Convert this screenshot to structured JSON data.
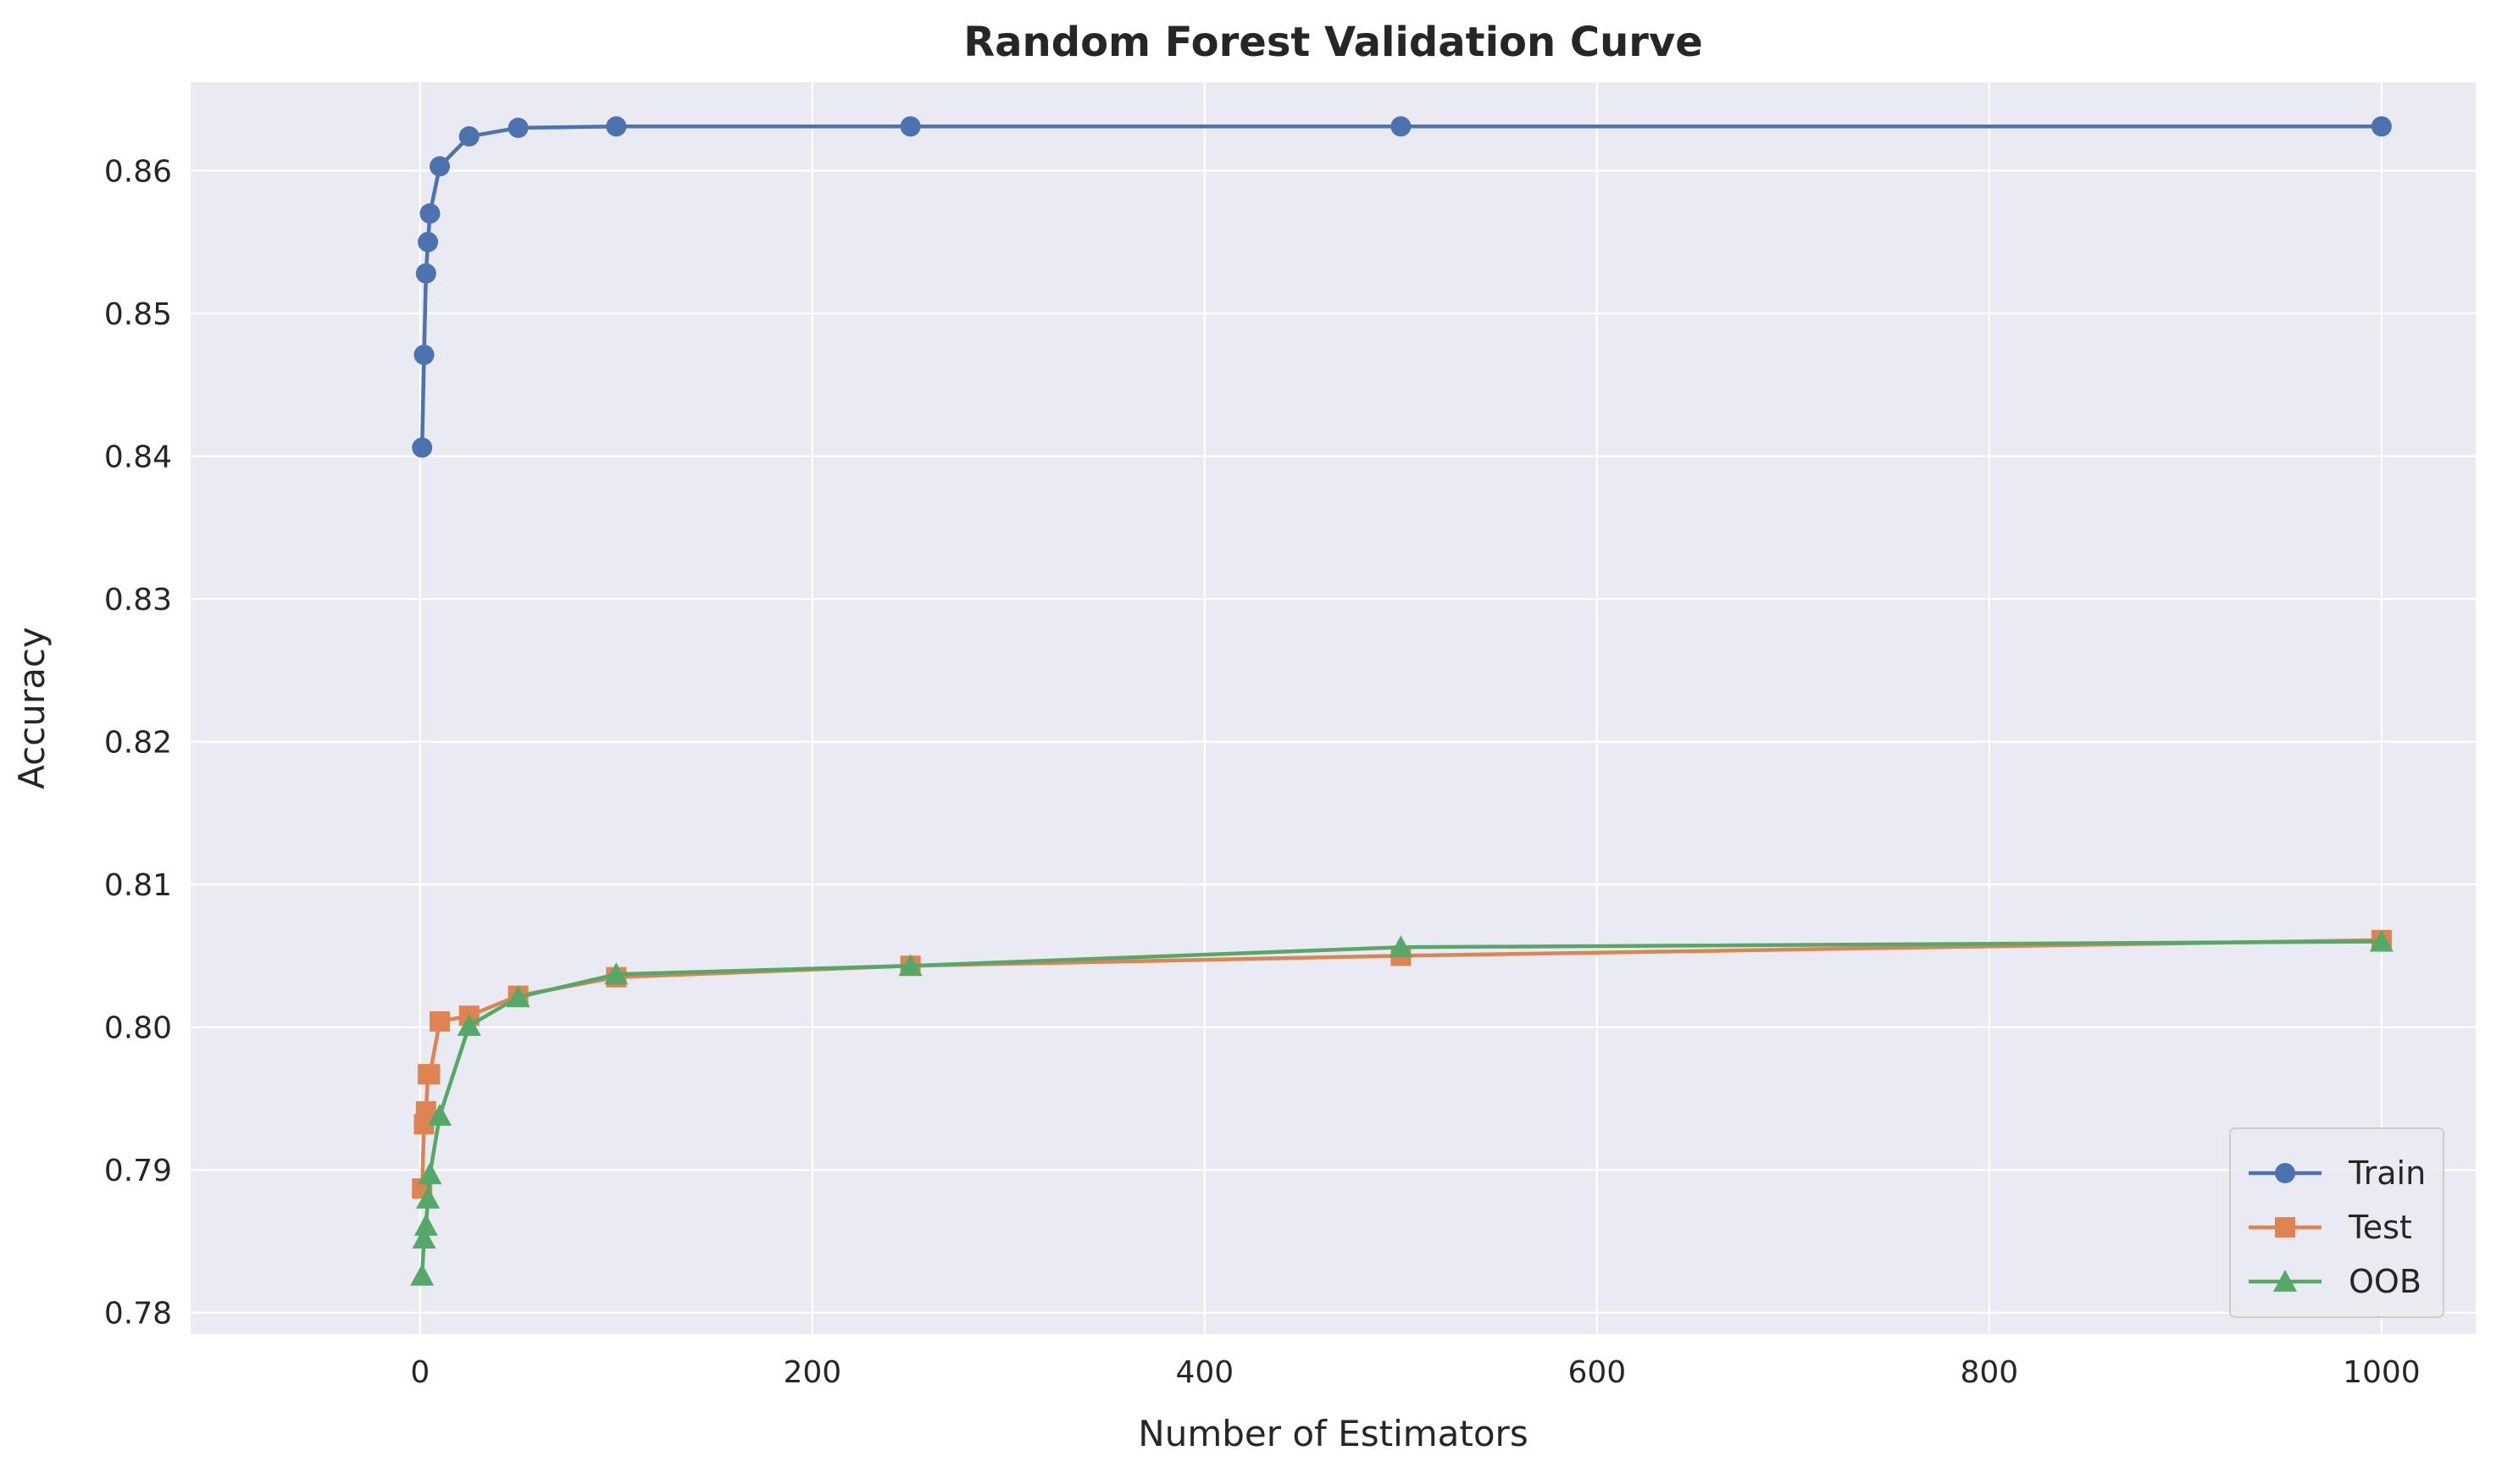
{
  "chart_data": {
    "type": "line",
    "title": "Random Forest Validation Curve",
    "xlabel": "Number of Estimators",
    "ylabel": "Accuracy",
    "xlim": [
      -117,
      1048
    ],
    "ylim": [
      0.7785,
      0.8662
    ],
    "xticks": [
      0,
      200,
      400,
      600,
      800,
      1000
    ],
    "yticks": [
      0.78,
      0.79,
      0.8,
      0.81,
      0.82,
      0.83,
      0.84,
      0.85,
      0.86
    ],
    "ytick_labels": [
      "0.78",
      "0.79",
      "0.80",
      "0.81",
      "0.82",
      "0.83",
      "0.84",
      "0.85",
      "0.86"
    ],
    "xtick_labels": [
      "0",
      "200",
      "400",
      "600",
      "800",
      "1000"
    ],
    "grid": true,
    "legend_position": "bottom-right",
    "x": [
      1,
      2,
      3,
      4,
      5,
      10,
      25,
      50,
      100,
      250,
      500,
      1000
    ],
    "series": [
      {
        "name": "Train",
        "color": "#4c72b0",
        "marker": "circle",
        "values": [
          0.8406,
          0.8471,
          0.8528,
          0.855,
          0.857,
          0.8603,
          0.8624,
          0.863,
          0.8631,
          0.8631,
          0.8631,
          0.8631
        ]
      },
      {
        "name": "Test",
        "color": "#dd8452",
        "marker": "square",
        "values": [
          0.7887,
          0.7932,
          0.7941,
          0.7967,
          0.7967,
          0.8004,
          0.8008,
          0.8022,
          0.8035,
          0.8043,
          0.805,
          0.8061
        ]
      },
      {
        "name": "OOB",
        "color": "#55a868",
        "marker": "triangle",
        "values": [
          0.7826,
          0.7852,
          0.7861,
          0.788,
          0.7897,
          0.7938,
          0.8001,
          0.8021,
          0.8037,
          0.8043,
          0.8056,
          0.806
        ]
      }
    ]
  }
}
